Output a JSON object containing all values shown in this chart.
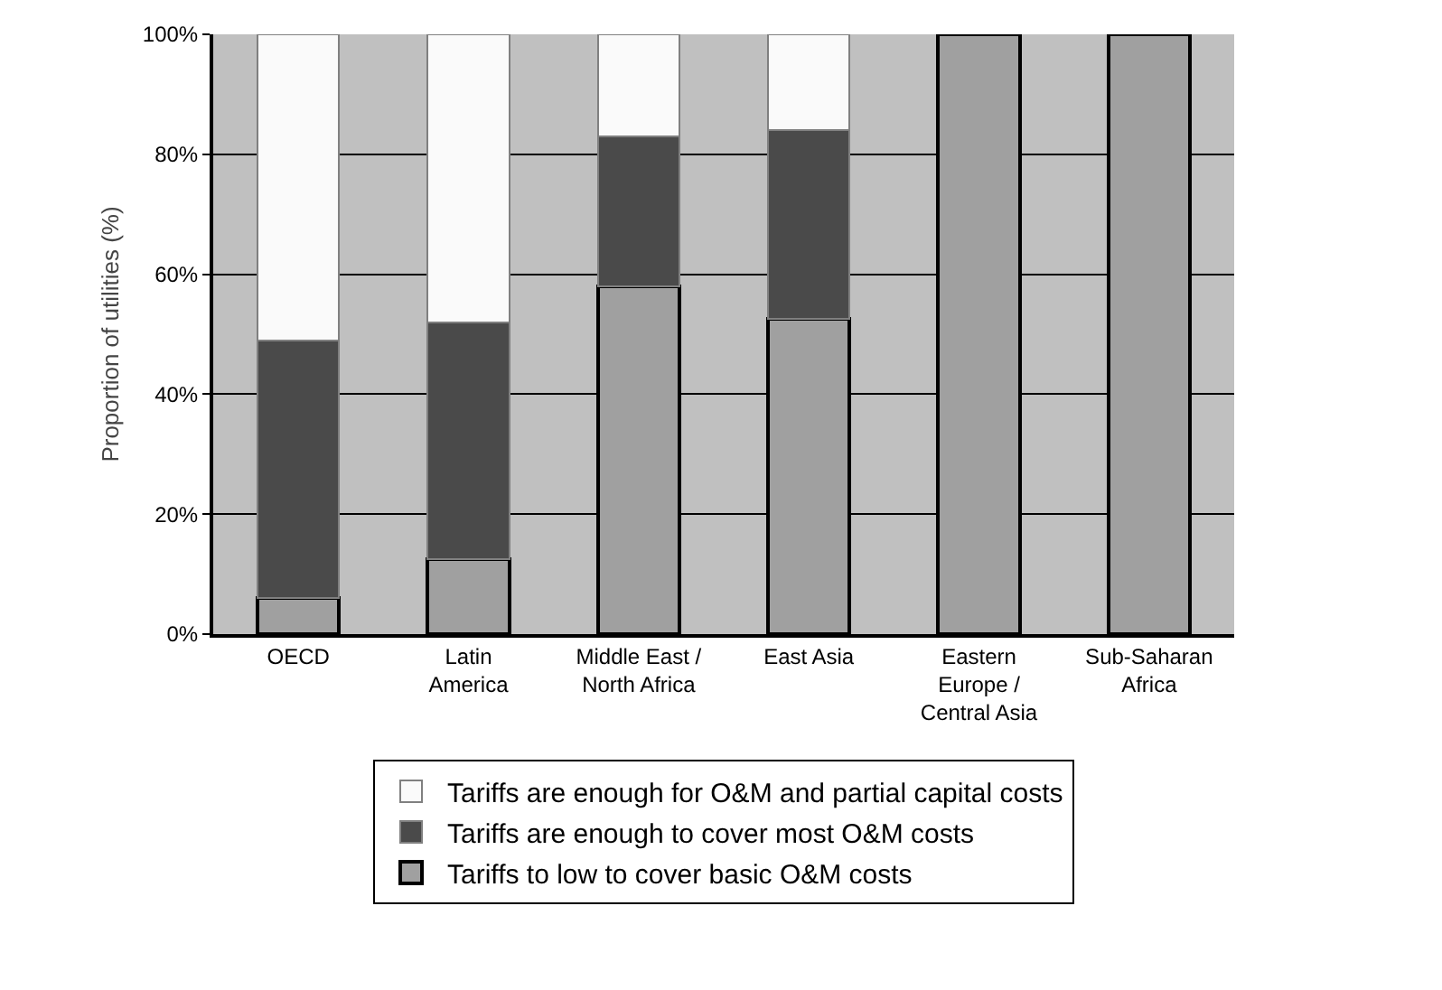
{
  "chart_data": {
    "type": "bar",
    "stacked": true,
    "ylabel": "Proportion of utilities (%)",
    "categories": [
      "OECD",
      "Latin\nAmerica",
      "Middle East /\nNorth Africa",
      "East Asia",
      "Eastern\nEurope /\nCentral Asia",
      "Sub-Saharan\nAfrica"
    ],
    "series": [
      {
        "name": "Tariffs to low to cover basic O&M costs",
        "color": "#a0a0a0",
        "values": [
          6,
          12.5,
          58,
          52.5,
          100,
          100
        ]
      },
      {
        "name": "Tariffs are enough to cover most O&M costs",
        "color": "#4a4a4a",
        "values": [
          43,
          39.5,
          25,
          31.5,
          0,
          0
        ]
      },
      {
        "name": "Tariffs are enough for O&M and partial capital costs",
        "color": "#fafafa",
        "values": [
          51,
          48,
          17,
          16,
          0,
          0
        ]
      }
    ],
    "ylim": [
      0,
      100
    ],
    "yticks": [
      {
        "value": 0,
        "label": "0%"
      },
      {
        "value": 20,
        "label": "20%"
      },
      {
        "value": 40,
        "label": "40%"
      },
      {
        "value": 60,
        "label": "60%"
      },
      {
        "value": 80,
        "label": "80%"
      },
      {
        "value": 100,
        "label": "100%"
      }
    ],
    "grid": "y",
    "legend": "bottom"
  }
}
